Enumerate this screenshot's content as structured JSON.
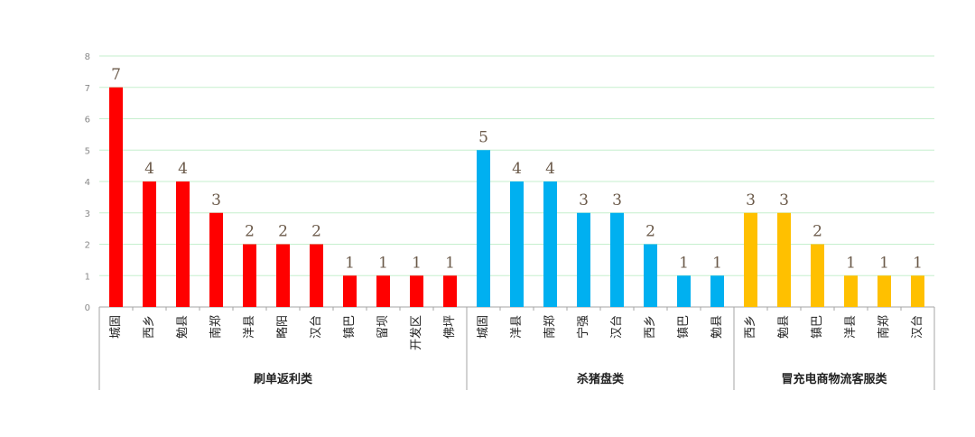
{
  "chart_data": {
    "type": "bar",
    "ylim": [
      0,
      8
    ],
    "yticks": [
      "0",
      "1",
      "2",
      "3",
      "4",
      "5",
      "6",
      "7",
      "8"
    ],
    "grid": true,
    "groups": [
      {
        "name": "刷单返利类",
        "color": "#ff0000",
        "categories": [
          "城固",
          "西乡",
          "勉县",
          "南郑",
          "洋县",
          "略阳",
          "汉台",
          "镇巴",
          "留坝",
          "开发区",
          "佛坪"
        ],
        "values": [
          7,
          4,
          4,
          3,
          2,
          2,
          2,
          1,
          1,
          1,
          1
        ]
      },
      {
        "name": "杀猪盘类",
        "color": "#00b0f0",
        "categories": [
          "城固",
          "洋县",
          "南郑",
          "宁强",
          "汉台",
          "西乡",
          "镇巴",
          "勉县"
        ],
        "values": [
          5,
          4,
          4,
          3,
          3,
          2,
          1,
          1
        ]
      },
      {
        "name": "冒充电商物流客服类",
        "color": "#ffc000",
        "categories": [
          "西乡",
          "勉县",
          "镇巴",
          "洋县",
          "南郑",
          "汉台"
        ],
        "values": [
          3,
          3,
          2,
          1,
          1,
          1
        ]
      }
    ]
  }
}
